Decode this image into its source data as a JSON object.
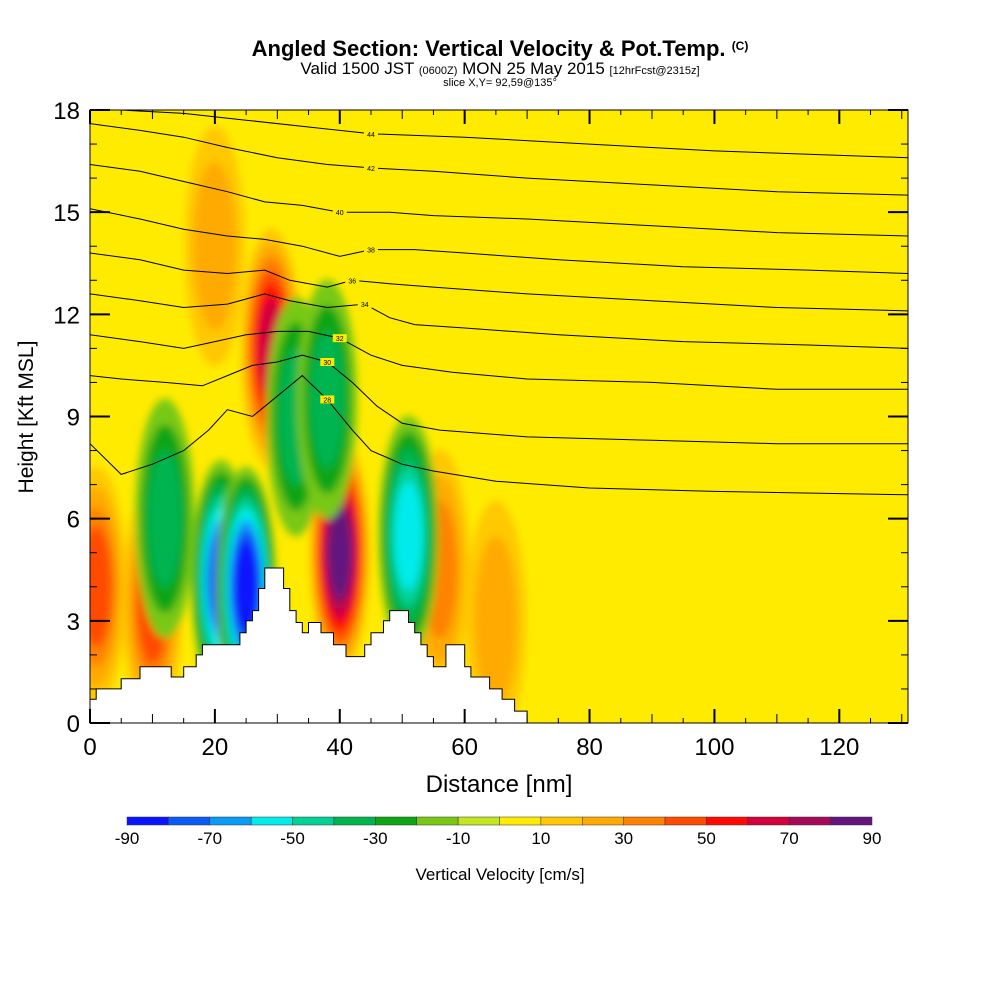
{
  "title": {
    "main": "Angled Section: Vertical Velocity & Pot.Temp.",
    "unit_tag": "(C)",
    "valid_prefix": "Valid 1500 JST",
    "valid_zulu": "(0600Z)",
    "valid_date": "MON 25 May 2015",
    "forecast": "[12hrFcst@2315z]",
    "slice": "slice X,Y= 92,59@135°"
  },
  "chart_data": {
    "type": "heatmap",
    "xlabel": "Distance [nm]",
    "ylabel": "Height [Kft MSL]",
    "xlim": [
      0,
      131
    ],
    "ylim": [
      0,
      18
    ],
    "xticks": [
      0,
      20,
      40,
      60,
      80,
      100,
      120
    ],
    "yticks": [
      0,
      3,
      6,
      9,
      12,
      15,
      18
    ],
    "colorbar": {
      "label": "Vertical Velocity [cm/s]",
      "tick_labels": [
        -90,
        -70,
        -50,
        -30,
        -10,
        10,
        30,
        50,
        70,
        90
      ],
      "levels": [
        -90,
        -80,
        -70,
        -60,
        -50,
        -40,
        -30,
        -20,
        -10,
        0,
        10,
        20,
        30,
        40,
        50,
        60,
        70,
        80,
        90
      ],
      "colors": [
        "#0a14ff",
        "#0a5af5",
        "#0a9bf5",
        "#00ebeb",
        "#00d296",
        "#00b450",
        "#0fa514",
        "#78c814",
        "#c3e61e",
        "#ffeb00",
        "#ffc800",
        "#ffaa00",
        "#ff8200",
        "#ff4b00",
        "#ff0a00",
        "#d2003c",
        "#a50a5a",
        "#64147d"
      ]
    },
    "terrain": [
      [
        0,
        0.7
      ],
      [
        1,
        0.7
      ],
      [
        1,
        1.0
      ],
      [
        5,
        1.0
      ],
      [
        5,
        1.3
      ],
      [
        8,
        1.3
      ],
      [
        8,
        1.65
      ],
      [
        13,
        1.65
      ],
      [
        13,
        1.35
      ],
      [
        15,
        1.35
      ],
      [
        15,
        1.65
      ],
      [
        17,
        1.65
      ],
      [
        17,
        2.0
      ],
      [
        18,
        2.0
      ],
      [
        18,
        2.3
      ],
      [
        24,
        2.3
      ],
      [
        24,
        2.65
      ],
      [
        25,
        2.65
      ],
      [
        25,
        3.0
      ],
      [
        26,
        3.0
      ],
      [
        26,
        3.3
      ],
      [
        27,
        3.3
      ],
      [
        27,
        3.95
      ],
      [
        28,
        3.95
      ],
      [
        28,
        4.55
      ],
      [
        31,
        4.55
      ],
      [
        31,
        3.95
      ],
      [
        32,
        3.95
      ],
      [
        32,
        3.3
      ],
      [
        33,
        3.3
      ],
      [
        33,
        2.95
      ],
      [
        34,
        2.95
      ],
      [
        34,
        2.65
      ],
      [
        35,
        2.65
      ],
      [
        35,
        2.95
      ],
      [
        37,
        2.95
      ],
      [
        37,
        2.65
      ],
      [
        39,
        2.65
      ],
      [
        39,
        2.3
      ],
      [
        41,
        2.3
      ],
      [
        41,
        1.95
      ],
      [
        44,
        1.95
      ],
      [
        44,
        2.3
      ],
      [
        45,
        2.3
      ],
      [
        45,
        2.65
      ],
      [
        47,
        2.65
      ],
      [
        47,
        3.0
      ],
      [
        48,
        3.0
      ],
      [
        48,
        3.3
      ],
      [
        51,
        3.3
      ],
      [
        51,
        2.95
      ],
      [
        52,
        2.95
      ],
      [
        52,
        2.65
      ],
      [
        53,
        2.65
      ],
      [
        53,
        2.3
      ],
      [
        54,
        2.3
      ],
      [
        54,
        1.95
      ],
      [
        55,
        1.95
      ],
      [
        55,
        1.65
      ],
      [
        57,
        1.65
      ],
      [
        57,
        2.3
      ],
      [
        60,
        2.3
      ],
      [
        60,
        1.65
      ],
      [
        61,
        1.65
      ],
      [
        61,
        1.35
      ],
      [
        64,
        1.35
      ],
      [
        64,
        1.0
      ],
      [
        66,
        1.0
      ],
      [
        66,
        0.7
      ],
      [
        68,
        0.7
      ],
      [
        68,
        0.35
      ],
      [
        70,
        0.35
      ],
      [
        70,
        0.0
      ]
    ],
    "updrafts": [
      {
        "x": 29,
        "y": 11.0,
        "value": 60
      },
      {
        "x": 40,
        "y": 5.0,
        "value": 80
      },
      {
        "x": 10,
        "y": 3.5,
        "value": 40
      },
      {
        "x": 1,
        "y": 4.0,
        "value": 40
      },
      {
        "x": 56,
        "y": 4.5,
        "value": 30
      },
      {
        "x": 65,
        "y": 3.0,
        "value": 20
      },
      {
        "x": 20,
        "y": 14.0,
        "value": 20
      }
    ],
    "downdrafts": [
      {
        "x": 21,
        "y": 4.2,
        "value": -70
      },
      {
        "x": 25,
        "y": 4.0,
        "value": -80
      },
      {
        "x": 51,
        "y": 5.5,
        "value": -50
      },
      {
        "x": 12,
        "y": 6.0,
        "value": -30
      },
      {
        "x": 33,
        "y": 9.0,
        "value": -30
      },
      {
        "x": 38,
        "y": 9.5,
        "value": -30
      }
    ],
    "theta_contours": [
      {
        "label": "28",
        "points": [
          [
            0,
            8.2
          ],
          [
            5,
            7.3
          ],
          [
            10,
            7.6
          ],
          [
            15,
            8.0
          ],
          [
            19,
            8.6
          ],
          [
            22,
            9.2
          ],
          [
            26,
            9.0
          ],
          [
            30,
            9.6
          ],
          [
            34,
            10.2
          ],
          [
            38,
            9.5
          ],
          [
            42,
            8.6
          ],
          [
            45,
            8.0
          ],
          [
            50,
            7.6
          ],
          [
            55,
            7.4
          ],
          [
            65,
            7.1
          ],
          [
            80,
            6.9
          ],
          [
            100,
            6.8
          ],
          [
            131,
            6.7
          ]
        ]
      },
      {
        "label": "30",
        "points": [
          [
            0,
            10.2
          ],
          [
            5,
            10.1
          ],
          [
            12,
            10.0
          ],
          [
            18,
            9.9
          ],
          [
            22,
            10.2
          ],
          [
            26,
            10.5
          ],
          [
            30,
            10.6
          ],
          [
            34,
            10.8
          ],
          [
            38,
            10.6
          ],
          [
            42,
            10.0
          ],
          [
            46,
            9.3
          ],
          [
            50,
            8.8
          ],
          [
            56,
            8.6
          ],
          [
            70,
            8.4
          ],
          [
            90,
            8.3
          ],
          [
            110,
            8.2
          ],
          [
            131,
            8.2
          ]
        ]
      },
      {
        "label": "32",
        "points": [
          [
            0,
            11.4
          ],
          [
            8,
            11.2
          ],
          [
            15,
            11.0
          ],
          [
            20,
            11.2
          ],
          [
            25,
            11.4
          ],
          [
            30,
            11.5
          ],
          [
            35,
            11.5
          ],
          [
            40,
            11.3
          ],
          [
            45,
            10.8
          ],
          [
            50,
            10.5
          ],
          [
            58,
            10.3
          ],
          [
            70,
            10.1
          ],
          [
            90,
            10.0
          ],
          [
            110,
            9.8
          ],
          [
            131,
            9.8
          ]
        ]
      },
      {
        "label": "34",
        "points": [
          [
            0,
            12.6
          ],
          [
            8,
            12.4
          ],
          [
            15,
            12.2
          ],
          [
            22,
            12.3
          ],
          [
            28,
            12.6
          ],
          [
            32,
            12.4
          ],
          [
            38,
            12.2
          ],
          [
            44,
            12.3
          ],
          [
            48,
            11.9
          ],
          [
            52,
            11.7
          ],
          [
            60,
            11.6
          ],
          [
            75,
            11.4
          ],
          [
            95,
            11.2
          ],
          [
            115,
            11.1
          ],
          [
            131,
            11.0
          ]
        ]
      },
      {
        "label": "36",
        "points": [
          [
            0,
            13.8
          ],
          [
            8,
            13.6
          ],
          [
            15,
            13.3
          ],
          [
            22,
            13.2
          ],
          [
            28,
            13.3
          ],
          [
            32,
            13.0
          ],
          [
            38,
            12.8
          ],
          [
            42,
            13.0
          ],
          [
            48,
            12.9
          ],
          [
            55,
            12.8
          ],
          [
            70,
            12.6
          ],
          [
            90,
            12.4
          ],
          [
            110,
            12.2
          ],
          [
            131,
            12.1
          ]
        ]
      },
      {
        "label": "38",
        "points": [
          [
            0,
            15.1
          ],
          [
            8,
            14.8
          ],
          [
            15,
            14.5
          ],
          [
            22,
            14.3
          ],
          [
            28,
            14.2
          ],
          [
            34,
            14.0
          ],
          [
            40,
            13.7
          ],
          [
            45,
            13.9
          ],
          [
            52,
            13.9
          ],
          [
            60,
            13.8
          ],
          [
            75,
            13.6
          ],
          [
            95,
            13.4
          ],
          [
            115,
            13.3
          ],
          [
            131,
            13.2
          ]
        ]
      },
      {
        "label": "40",
        "points": [
          [
            0,
            16.4
          ],
          [
            8,
            16.2
          ],
          [
            15,
            15.9
          ],
          [
            22,
            15.6
          ],
          [
            28,
            15.3
          ],
          [
            34,
            15.2
          ],
          [
            40,
            15.0
          ],
          [
            48,
            15.0
          ],
          [
            55,
            14.9
          ],
          [
            70,
            14.8
          ],
          [
            90,
            14.6
          ],
          [
            110,
            14.4
          ],
          [
            131,
            14.3
          ]
        ]
      },
      {
        "label": "42",
        "points": [
          [
            0,
            17.6
          ],
          [
            8,
            17.4
          ],
          [
            15,
            17.2
          ],
          [
            22,
            16.9
          ],
          [
            30,
            16.6
          ],
          [
            38,
            16.4
          ],
          [
            45,
            16.3
          ],
          [
            55,
            16.2
          ],
          [
            70,
            16.0
          ],
          [
            90,
            15.8
          ],
          [
            110,
            15.6
          ],
          [
            131,
            15.5
          ]
        ]
      },
      {
        "label": "44",
        "points": [
          [
            5,
            18.0
          ],
          [
            15,
            17.9
          ],
          [
            25,
            17.7
          ],
          [
            35,
            17.5
          ],
          [
            45,
            17.3
          ],
          [
            60,
            17.2
          ],
          [
            80,
            17.0
          ],
          [
            100,
            16.8
          ],
          [
            131,
            16.6
          ]
        ]
      }
    ]
  }
}
